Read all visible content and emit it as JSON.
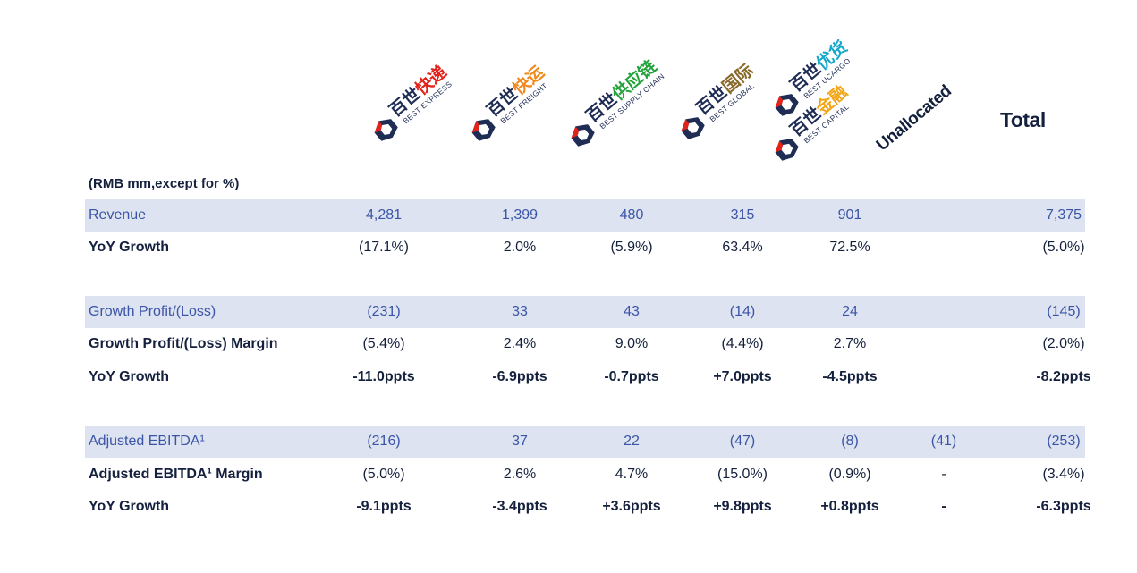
{
  "header": {
    "logos": [
      {
        "cn_a": "百世",
        "cn_b": "快递",
        "cn_b_color": "#e2231a",
        "en": "BEST EXPRESS"
      },
      {
        "cn_a": "百世",
        "cn_b": "快运",
        "cn_b_color": "#f08a1c",
        "en": "BEST FREIGHT"
      },
      {
        "cn_a": "百世",
        "cn_b": "供应链",
        "cn_b_color": "#22a33b",
        "en": "BEST SUPPLY CHAIN"
      },
      {
        "cn_a": "百世",
        "cn_b": "国际",
        "cn_b_color": "#8a6a2a",
        "en": "BEST GLOBAL"
      },
      {
        "cn_a": "百世",
        "cn_b": "优货",
        "cn_b_color": "#14a7c9",
        "en": "BEST UCARGO"
      },
      {
        "cn_a": "百世",
        "cn_b": "金融",
        "cn_b_color": "#f2a516",
        "en": "BEST CAPITAL"
      }
    ],
    "unallocated": "Unallocated",
    "total": "Total"
  },
  "unit_note": "(RMB mm,except for %)",
  "rows": [
    {
      "label": "Revenue",
      "values": [
        "4,281",
        "1,399",
        "480",
        "315",
        "901",
        "",
        "7,375"
      ]
    },
    {
      "label": "YoY Growth",
      "values": [
        "(17.1%)",
        "2.0%",
        "(5.9%)",
        "63.4%",
        "72.5%",
        "",
        "(5.0%)"
      ]
    },
    {
      "label": "Growth Profit/(Loss)",
      "values": [
        "(231)",
        "33",
        "43",
        "(14)",
        "24",
        "",
        "(145)"
      ]
    },
    {
      "label": "Growth Profit/(Loss) Margin",
      "values": [
        "(5.4%)",
        "2.4%",
        "9.0%",
        "(4.4%)",
        "2.7%",
        "",
        "(2.0%)"
      ]
    },
    {
      "label": "YoY Growth",
      "values": [
        "-11.0ppts",
        "-6.9ppts",
        "-0.7ppts",
        "+7.0ppts",
        "-4.5ppts",
        "",
        "-8.2ppts"
      ]
    },
    {
      "label": "Adjusted EBITDA¹",
      "values": [
        "(216)",
        "37",
        "22",
        "(47)",
        "(8)",
        "(41)",
        "(253)"
      ]
    },
    {
      "label": "Adjusted EBITDA¹ Margin",
      "values": [
        "(5.0%)",
        "2.6%",
        "4.7%",
        "(15.0%)",
        "(0.9%)",
        "-",
        "(3.4%)"
      ]
    },
    {
      "label": "YoY Growth",
      "values": [
        "-9.1ppts",
        "-3.4ppts",
        "+3.6ppts",
        "+9.8ppts",
        "+0.8ppts",
        "-",
        "-6.3ppts"
      ]
    }
  ]
}
